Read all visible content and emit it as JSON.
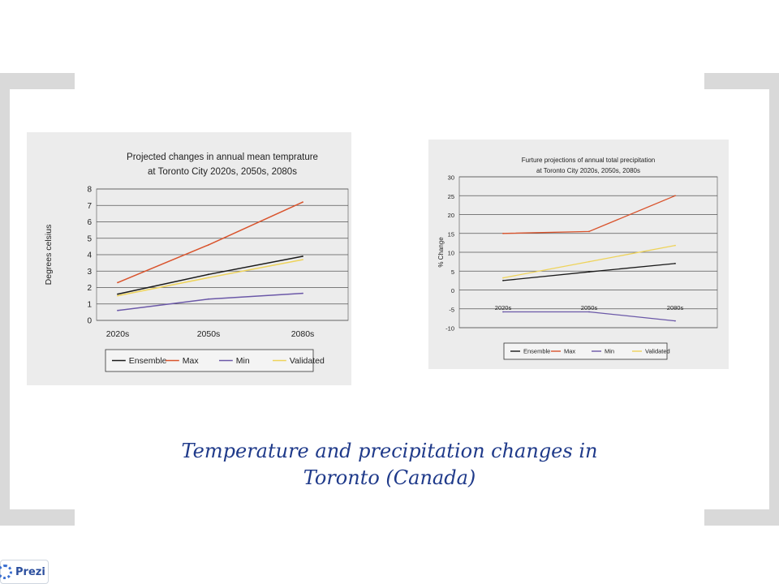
{
  "caption": {
    "line1": "Temperature and precipitation changes in",
    "line2": "Toronto (Canada)"
  },
  "badge": {
    "label": "Prezi",
    "icon": "prezi-logo-icon"
  },
  "colors": {
    "Ensemble": "#1a1a1a",
    "Max": "#d9532c",
    "Min": "#6b58a8",
    "Validated": "#eed35a",
    "caption": "#1f3a8a",
    "frame": "#d9d9d9",
    "panel": "#ececec"
  },
  "chart_data": [
    {
      "type": "line",
      "title": [
        "Projected changes in annual mean temprature",
        "at Toronto City 2020s, 2050s, 2080s"
      ],
      "xlabel": "",
      "ylabel": "Degrees celsius",
      "categories": [
        "2020s",
        "2050s",
        "2080s"
      ],
      "yticks": [
        "0",
        "1",
        "2",
        "3",
        "4",
        "5",
        "6",
        "7",
        "8"
      ],
      "ylim": [
        0,
        8
      ],
      "grid": true,
      "legend": "bottom",
      "series": [
        {
          "name": "Ensemble",
          "values": [
            1.6,
            2.8,
            3.9
          ]
        },
        {
          "name": "Max",
          "values": [
            2.3,
            4.6,
            7.2
          ]
        },
        {
          "name": "Min",
          "values": [
            0.6,
            1.3,
            1.65
          ]
        },
        {
          "name": "Validated",
          "values": [
            1.5,
            2.6,
            3.7
          ]
        }
      ]
    },
    {
      "type": "line",
      "title": [
        "Furture projections of annual total precipitation",
        "at Toronto City 2020s, 2050s, 2080s"
      ],
      "xlabel": "",
      "ylabel": "% Change",
      "categories": [
        "2020s",
        "2050s",
        "2080s"
      ],
      "yticks": [
        "-10",
        "-5",
        "0",
        "5",
        "10",
        "15",
        "20",
        "25",
        "30"
      ],
      "ylim": [
        -10,
        30
      ],
      "grid": true,
      "legend": "bottom",
      "series": [
        {
          "name": "Ensemble",
          "values": [
            2.5,
            4.8,
            7.0
          ]
        },
        {
          "name": "Max",
          "values": [
            15.0,
            15.5,
            25.0
          ]
        },
        {
          "name": "Min",
          "values": [
            -5.8,
            -5.8,
            -8.2
          ]
        },
        {
          "name": "Validated",
          "values": [
            3.2,
            7.5,
            11.8
          ]
        }
      ]
    }
  ]
}
